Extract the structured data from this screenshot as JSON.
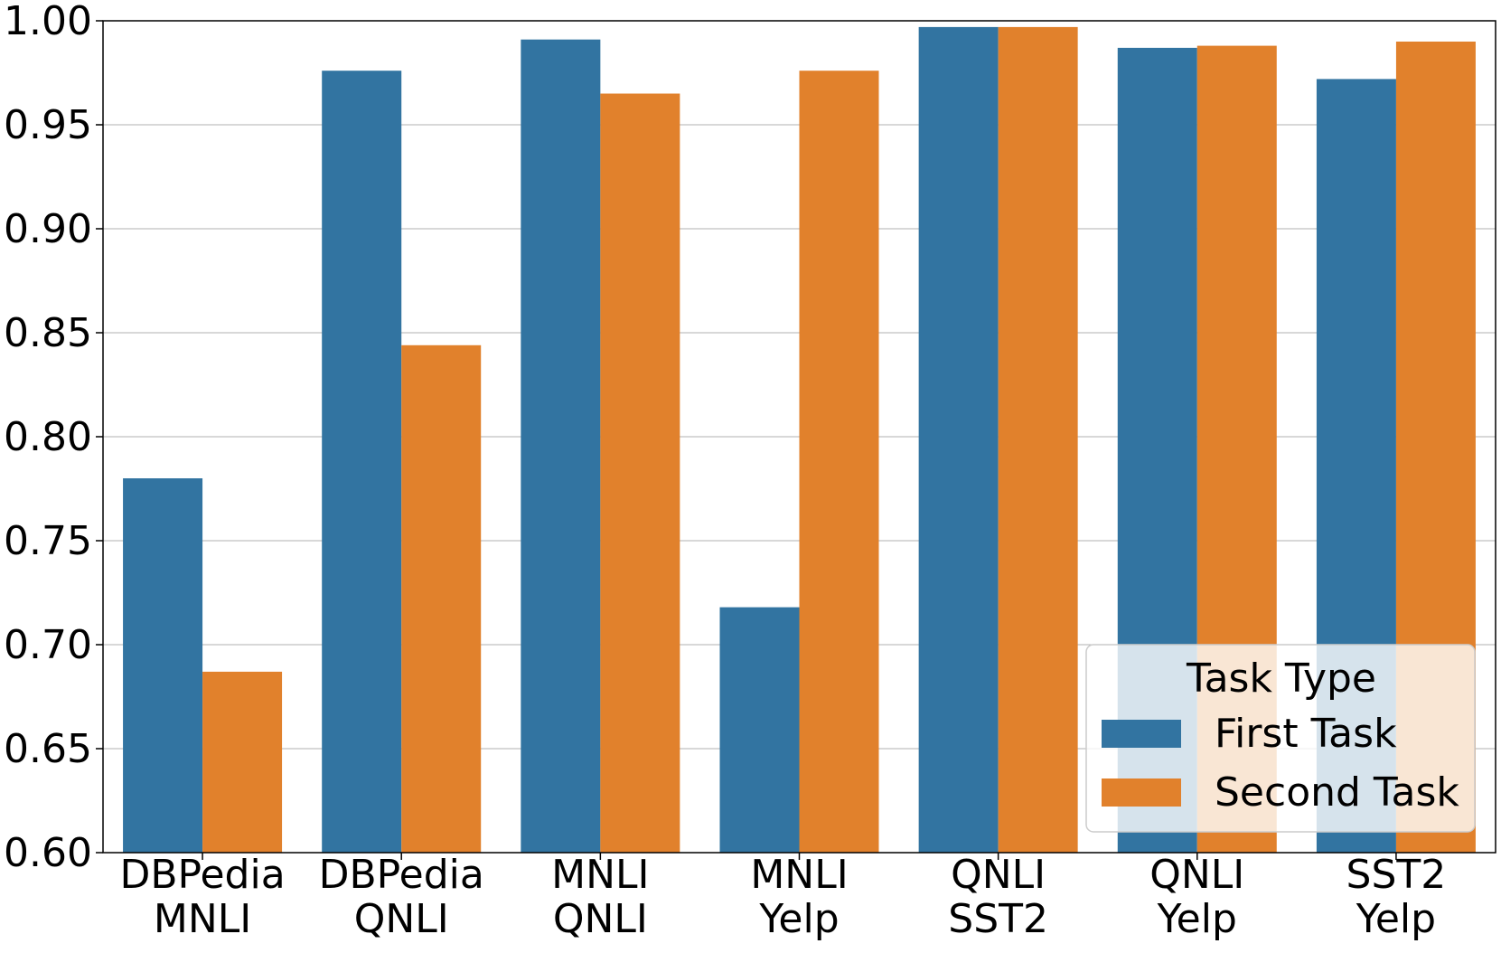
{
  "chart_data": {
    "type": "bar",
    "title": "",
    "xlabel": "",
    "ylabel": "",
    "categories": [
      [
        "DBPedia",
        "MNLI"
      ],
      [
        "DBPedia",
        "QNLI"
      ],
      [
        "MNLI",
        "QNLI"
      ],
      [
        "MNLI",
        "Yelp"
      ],
      [
        "QNLI",
        "SST2"
      ],
      [
        "QNLI",
        "Yelp"
      ],
      [
        "SST2",
        "Yelp"
      ]
    ],
    "series": [
      {
        "name": "First Task",
        "color": "#3274a1",
        "values": [
          0.78,
          0.976,
          0.991,
          0.718,
          0.997,
          0.987,
          0.972
        ]
      },
      {
        "name": "Second Task",
        "color": "#e1812c",
        "values": [
          0.687,
          0.844,
          0.965,
          0.976,
          0.997,
          0.988,
          0.99
        ]
      }
    ],
    "ylim": [
      0.6,
      1.0
    ],
    "yticks": [
      "0.60",
      "0.65",
      "0.70",
      "0.75",
      "0.80",
      "0.85",
      "0.90",
      "0.95",
      "1.00"
    ],
    "grid": "y",
    "legend": {
      "title": "Task Type",
      "placement": "lower-right"
    }
  }
}
